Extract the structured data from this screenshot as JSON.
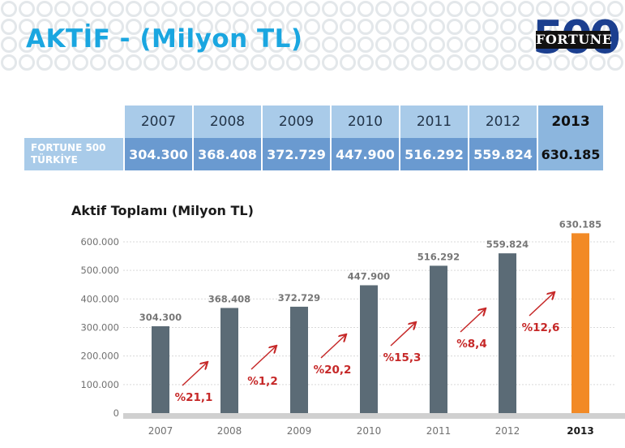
{
  "page": {
    "title": "AKTİF - (Milyon TL)",
    "logo": {
      "digits": "500",
      "brand": "FORTUNE"
    }
  },
  "table": {
    "row_label_line1": "FORTUNE 500",
    "row_label_line2": "TÜRKİYE",
    "years": [
      "2007",
      "2008",
      "2009",
      "2010",
      "2011",
      "2012",
      "2013"
    ],
    "values": [
      "304.300",
      "368.408",
      "372.729",
      "447.900",
      "516.292",
      "559.824",
      "630.185"
    ]
  },
  "chart_data": {
    "type": "bar",
    "title": "Aktif Toplamı (Milyon TL)",
    "categories": [
      "2007",
      "2008",
      "2009",
      "2010",
      "2011",
      "2012",
      "2013"
    ],
    "values": [
      304300,
      368408,
      372729,
      447900,
      516292,
      559824,
      630185
    ],
    "value_labels": [
      "304.300",
      "368.408",
      "372.729",
      "447.900",
      "516.292",
      "559.824",
      "630.185"
    ],
    "growth_labels": [
      "%21,1",
      "%1,2",
      "%20,2",
      "%15,3",
      "%8,4",
      "%12,6"
    ],
    "y_ticks": [
      0,
      100000,
      200000,
      300000,
      400000,
      500000,
      600000
    ],
    "y_tick_labels": [
      "0",
      "100.000",
      "200.000",
      "300.000",
      "400.000",
      "500.000",
      "600.000"
    ],
    "ylim": [
      0,
      600000
    ],
    "grid": true,
    "bar_color": "#5b6b76",
    "highlight_color": "#f28a26",
    "growth_color": "#c62828"
  }
}
